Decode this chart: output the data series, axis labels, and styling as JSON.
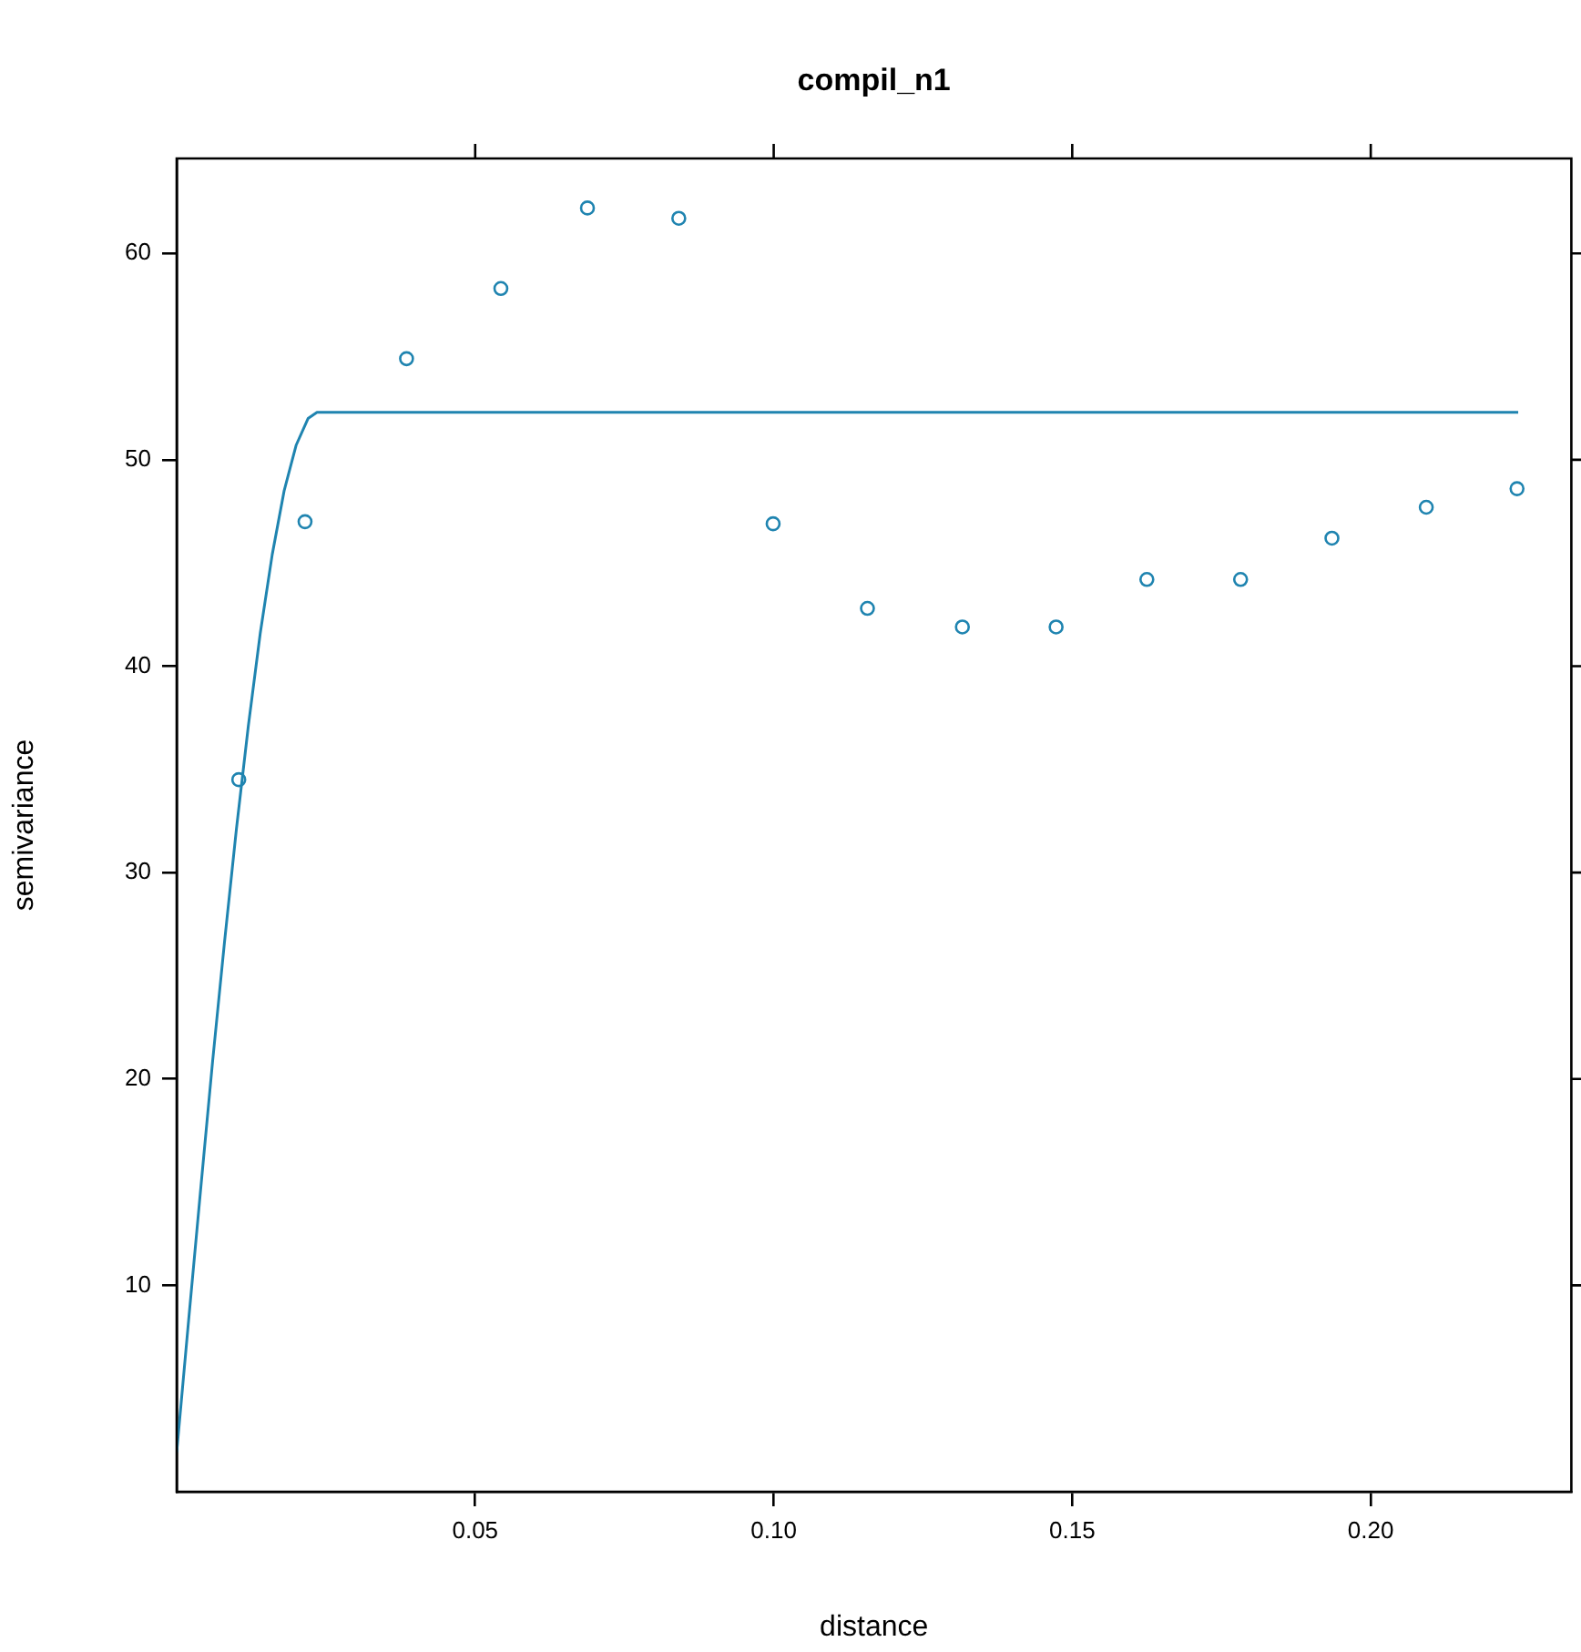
{
  "chart_data": {
    "type": "scatter",
    "title": "compil_n1",
    "xlabel": "distance",
    "ylabel": "semivariance",
    "xlim": [
      0,
      0.2336
    ],
    "ylim": [
      0,
      64.6
    ],
    "xticks": [
      0.05,
      {
        "value": 0.1,
        "label": "0.10"
      },
      0.15,
      {
        "value": 0.2,
        "label": "0.20"
      }
    ],
    "yticks": [
      10,
      20,
      30,
      40,
      50,
      60
    ],
    "grid": false,
    "legend": false,
    "series": [
      {
        "marker": "circle",
        "color": "#1f84b0",
        "x": [
          0.0104,
          0.0215,
          0.0385,
          0.0543,
          0.0688,
          0.0841,
          0.0999,
          0.1157,
          0.1316,
          0.1473,
          0.1625,
          0.1782,
          0.1935,
          0.2093,
          0.2245
        ],
        "values": [
          34.5,
          47.0,
          54.9,
          58.3,
          62.2,
          61.7,
          46.9,
          42.8,
          41.9,
          41.9,
          44.2,
          44.2,
          46.2,
          47.7,
          48.6
        ]
      },
      {
        "type": "line",
        "marker": "none",
        "line_style": "solid",
        "color": "#1f84b0",
        "x": [
          0,
          0.002,
          0.004,
          0.006,
          0.008,
          0.01,
          0.012,
          0.014,
          0.016,
          0.018,
          0.02,
          0.022,
          0.0235,
          0.2247
        ],
        "values": [
          1.9,
          8.3,
          14.6,
          20.8,
          26.6,
          32.1,
          37.1,
          41.6,
          45.4,
          48.5,
          50.7,
          52.0,
          52.3,
          52.3
        ]
      }
    ]
  }
}
